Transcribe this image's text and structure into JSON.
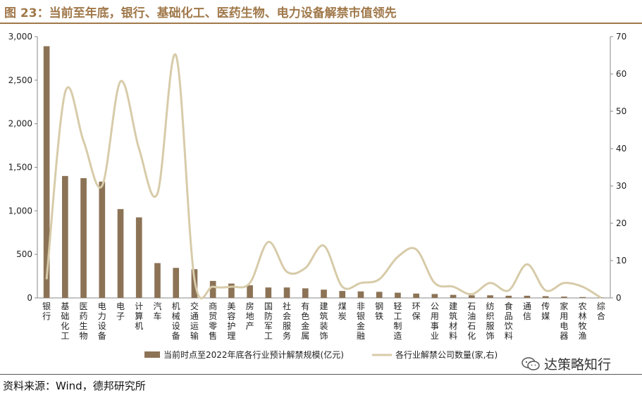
{
  "figure": {
    "title": "图 23：当前至年底，银行、基础化工、医药生物、电力设备解禁市值领先",
    "source": "资料来源：Wind，德邦研究所",
    "watermark": "达策略知行",
    "watermark_icon": "wechat-icon"
  },
  "colors": {
    "title": "#a0784a",
    "bar": "#8c7356",
    "line": "#d7cba9",
    "axis": "#888888",
    "text": "#222222"
  },
  "chart_data": {
    "type": "bar",
    "categories": [
      "银行",
      "基础化工",
      "医药生物",
      "电力设备",
      "电子",
      "计算机",
      "汽车",
      "机械设备",
      "交通运输",
      "商贸零售",
      "美容护理",
      "房地产",
      "国防军工",
      "社会服务",
      "有色金属",
      "建筑装饰",
      "煤炭",
      "非银金融",
      "钢铁",
      "轻工制造",
      "环保",
      "公用事业",
      "建筑材料",
      "石油石化",
      "纺织服饰",
      "食品饮料",
      "通信",
      "传媒",
      "家用电器",
      "农林牧渔",
      "综合"
    ],
    "series": [
      {
        "name": "当前时点至2022年底各行业预计解禁规模(亿元)",
        "type": "bar",
        "axis": "left",
        "values": [
          2890,
          1400,
          1375,
          1335,
          1020,
          925,
          400,
          345,
          330,
          195,
          165,
          145,
          120,
          120,
          110,
          95,
          80,
          75,
          70,
          60,
          50,
          45,
          35,
          30,
          30,
          25,
          25,
          20,
          15,
          10,
          5
        ]
      },
      {
        "name": "各行业解禁公司数量(家,右)",
        "type": "line",
        "axis": "right",
        "values": [
          5,
          55,
          42,
          30,
          58,
          40,
          28,
          65,
          5,
          3,
          3,
          4,
          15,
          7,
          8,
          14,
          3,
          4,
          5,
          11,
          13,
          4,
          3,
          1,
          4,
          2,
          9,
          2,
          4,
          3,
          0
        ]
      }
    ],
    "y_left": {
      "min": 0,
      "max": 3000,
      "ticks": [
        0,
        500,
        1000,
        1500,
        2000,
        2500,
        3000
      ],
      "tick_labels": [
        "0",
        "500",
        "1,000",
        "1,500",
        "2,000",
        "2,500",
        "3,000"
      ]
    },
    "y_right": {
      "min": 0,
      "max": 70,
      "ticks": [
        0,
        10,
        20,
        30,
        40,
        50,
        60,
        70
      ],
      "tick_labels": [
        "0",
        "10",
        "20",
        "30",
        "40",
        "50",
        "60",
        "70"
      ]
    },
    "grid": false,
    "legend_position": "bottom"
  }
}
